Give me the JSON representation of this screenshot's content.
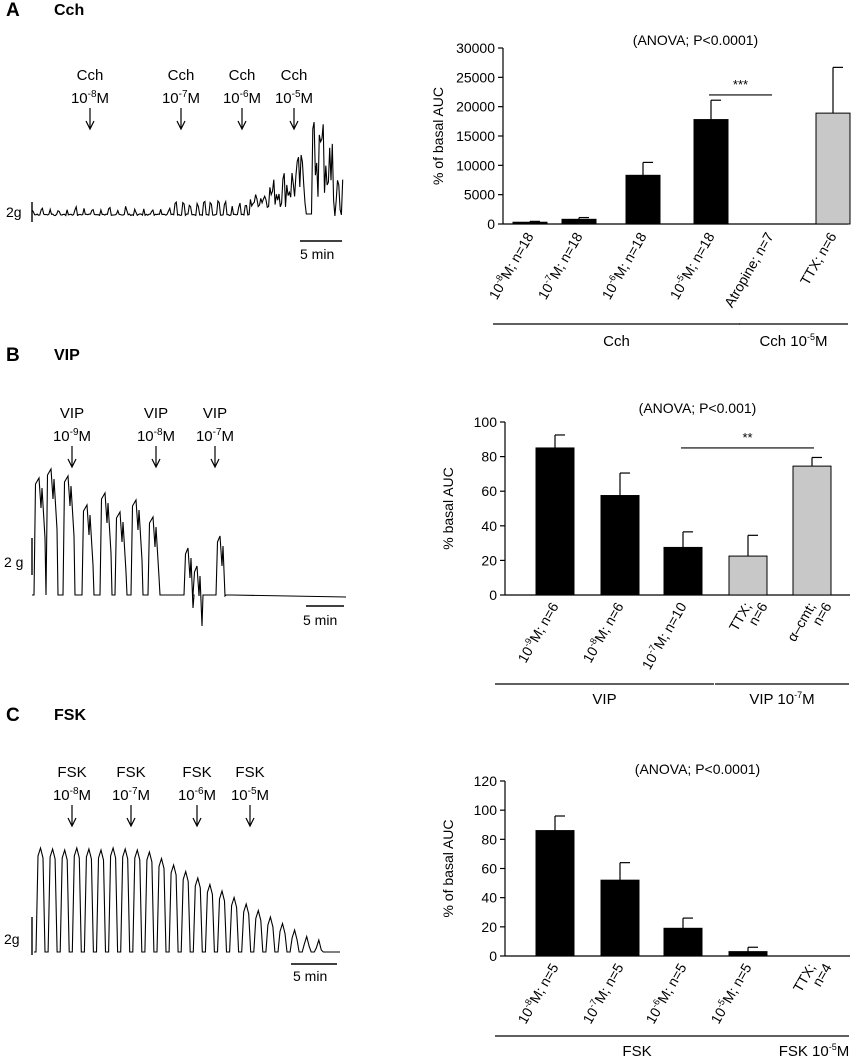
{
  "panels": [
    {
      "letter": "A",
      "title": "Cch",
      "trace": {
        "stimuli": [
          {
            "agent": "Cch",
            "conc": "10",
            "exp": "-8",
            "unit": "M"
          },
          {
            "agent": "Cch",
            "conc": "10",
            "exp": "-7",
            "unit": "M"
          },
          {
            "agent": "Cch",
            "conc": "10",
            "exp": "-6",
            "unit": "M"
          },
          {
            "agent": "Cch",
            "conc": "10",
            "exp": "-5",
            "unit": "M"
          }
        ],
        "calibration": "2g",
        "time_scale": "5 min"
      }
    },
    {
      "letter": "B",
      "title": "VIP",
      "trace": {
        "stimuli": [
          {
            "agent": "VIP",
            "conc": "10",
            "exp": "-9",
            "unit": "M"
          },
          {
            "agent": "VIP",
            "conc": "10",
            "exp": "-8",
            "unit": "M"
          },
          {
            "agent": "VIP",
            "conc": "10",
            "exp": "-7",
            "unit": "M"
          }
        ],
        "calibration": "2 g",
        "time_scale": "5 min"
      }
    },
    {
      "letter": "C",
      "title": "FSK",
      "trace": {
        "stimuli": [
          {
            "agent": "FSK",
            "conc": "10",
            "exp": "-8",
            "unit": "M"
          },
          {
            "agent": "FSK",
            "conc": "10",
            "exp": "-7",
            "unit": "M"
          },
          {
            "agent": "FSK",
            "conc": "10",
            "exp": "-6",
            "unit": "M"
          },
          {
            "agent": "FSK",
            "conc": "10",
            "exp": "-5",
            "unit": "M"
          }
        ],
        "calibration": "2g",
        "time_scale": "5 min"
      }
    }
  ],
  "chart_data": [
    {
      "type": "bar",
      "title": "(ANOVA; P<0.0001)",
      "ylabel": "% of basal AUC",
      "ylim": [
        0,
        30000
      ],
      "yticks": [
        0,
        5000,
        10000,
        15000,
        20000,
        25000,
        30000
      ],
      "categories": [
        {
          "line1": "10",
          "sup": "-8",
          "rest": "M; n=18",
          "line2": ""
        },
        {
          "line1": "10",
          "sup": "-7",
          "rest": "M; n=18",
          "line2": ""
        },
        {
          "line1": "10",
          "sup": "-6",
          "rest": "M; n=18",
          "line2": ""
        },
        {
          "line1": "10",
          "sup": "-5",
          "rest": "M; n=18",
          "line2": ""
        },
        {
          "line1": "Atropine; n=7",
          "sup": "",
          "rest": "",
          "line2": ""
        },
        {
          "line1": "TTX; n=6",
          "sup": "",
          "rest": "",
          "line2": ""
        }
      ],
      "values": [
        300,
        800,
        8300,
        17800,
        0,
        18900
      ],
      "errors": [
        150,
        300,
        2200,
        3300,
        0,
        7800
      ],
      "colors": [
        "#000000",
        "#000000",
        "#000000",
        "#000000",
        "#c8c8c8",
        "#c8c8c8"
      ],
      "significance": {
        "from": 3,
        "to": 4,
        "label": "***",
        "y": 22000
      },
      "groups": [
        {
          "label": "Cch",
          "sup": "",
          "from": 0,
          "to": 3
        },
        {
          "label": "Cch 10",
          "sup": "-5",
          "suffix": "M",
          "from": 4,
          "to": 5
        }
      ]
    },
    {
      "type": "bar",
      "title": "(ANOVA; P<0.001)",
      "ylabel": "% basal AUC",
      "ylim": [
        0,
        100
      ],
      "yticks": [
        0,
        20,
        40,
        60,
        80,
        100
      ],
      "categories": [
        {
          "line1": "10",
          "sup": "-9",
          "rest": "M; n=6",
          "line2": ""
        },
        {
          "line1": "10",
          "sup": "-8",
          "rest": "M; n=6",
          "line2": ""
        },
        {
          "line1": "10",
          "sup": "-7",
          "rest": "M; n=10",
          "line2": ""
        },
        {
          "line1": "TTX;",
          "sup": "",
          "rest": "",
          "line2": "n=6"
        },
        {
          "line1": "α–cmt;",
          "sup": "",
          "rest": "",
          "line2": "n=6"
        }
      ],
      "values": [
        85,
        57.5,
        27.5,
        22.5,
        74.5
      ],
      "errors": [
        7.5,
        13,
        9,
        12,
        5
      ],
      "colors": [
        "#000000",
        "#000000",
        "#000000",
        "#c8c8c8",
        "#c8c8c8"
      ],
      "significance": {
        "from": 2,
        "to": 4,
        "label": "**",
        "y": 85
      },
      "groups": [
        {
          "label": "VIP",
          "sup": "",
          "from": 0,
          "to": 2
        },
        {
          "label": "VIP 10",
          "sup": "-7",
          "suffix": "M",
          "from": 3,
          "to": 4
        }
      ]
    },
    {
      "type": "bar",
      "title": "(ANOVA; P<0.0001)",
      "ylabel": "% of basal AUC",
      "ylim": [
        0,
        120
      ],
      "yticks": [
        0,
        20,
        40,
        60,
        80,
        100,
        120
      ],
      "categories": [
        {
          "line1": "10",
          "sup": "-8",
          "rest": "M; n=5",
          "line2": ""
        },
        {
          "line1": "10",
          "sup": "-7",
          "rest": "M; n=5",
          "line2": ""
        },
        {
          "line1": "10",
          "sup": "-6",
          "rest": "M; n=5",
          "line2": ""
        },
        {
          "line1": "10",
          "sup": "-5",
          "rest": "M; n=5",
          "line2": ""
        },
        {
          "line1": "TTX;",
          "sup": "",
          "rest": "",
          "line2": "n=4"
        }
      ],
      "values": [
        86,
        52,
        19,
        3,
        0
      ],
      "errors": [
        10,
        12,
        7,
        3,
        0
      ],
      "colors": [
        "#000000",
        "#000000",
        "#000000",
        "#000000",
        "#c8c8c8"
      ],
      "significance": null,
      "groups": [
        {
          "label": "FSK",
          "sup": "",
          "from": 0,
          "to": 3
        },
        {
          "label": "FSK 10",
          "sup": "-5",
          "suffix": "M",
          "from": 4,
          "to": 4
        }
      ]
    }
  ]
}
